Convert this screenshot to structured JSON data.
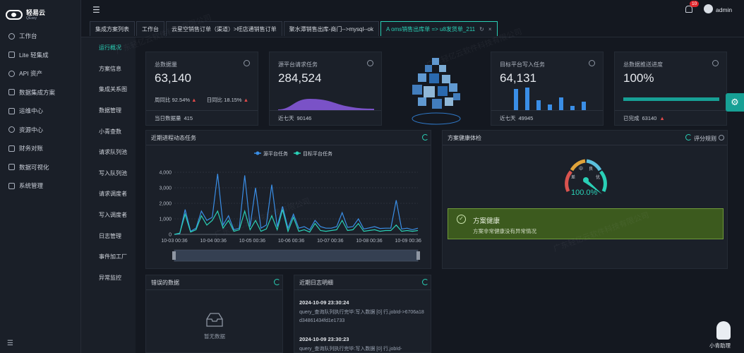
{
  "logo": {
    "name": "轻易云",
    "sub": "QEasy"
  },
  "sidebar": {
    "items": [
      {
        "label": "工作台",
        "icon": "workbench-icon"
      },
      {
        "label": "Lite 轻集成",
        "icon": "lite-icon"
      },
      {
        "label": "API 资产",
        "icon": "api-icon"
      },
      {
        "label": "数据集成方案",
        "icon": "integration-icon"
      },
      {
        "label": "运维中心",
        "icon": "ops-icon"
      },
      {
        "label": "资源中心",
        "icon": "resource-icon"
      },
      {
        "label": "财务对账",
        "icon": "finance-icon"
      },
      {
        "label": "数据可视化",
        "icon": "visualization-icon"
      },
      {
        "label": "系统管理",
        "icon": "system-icon"
      }
    ]
  },
  "header": {
    "notifications": "10",
    "user": "admin"
  },
  "tabs": [
    {
      "label": "集成方案列表"
    },
    {
      "label": "工作台"
    },
    {
      "label": "云星空销售订单（渠道）>旺店通销售订单"
    },
    {
      "label": "聚水潭销售出库-商门-->mysql--ok"
    },
    {
      "label": "A oms销售出库单 => u8发货单_211",
      "active": true
    }
  ],
  "subnav": [
    "运行概况",
    "方案信息",
    "集成关系图",
    "数据管理",
    "小青查数",
    "请求队列池",
    "写入队列池",
    "请求调度者",
    "写入调度者",
    "日志管理",
    "事件加工厂",
    "异常监控"
  ],
  "stats": {
    "total": {
      "title": "总数据量",
      "value": "63,140",
      "wow_label": "周同比",
      "wow": "92.54%",
      "dod_label": "日同比",
      "dod": "18.15%",
      "foot_label": "当日数据量",
      "foot_value": "415"
    },
    "source": {
      "title": "源平台请求任务",
      "value": "284,524",
      "foot_label": "近七天",
      "foot_value": "90146"
    },
    "target": {
      "title": "目标平台写入任务",
      "value": "64,131",
      "foot_label": "近七天",
      "foot_value": "49945"
    },
    "progress": {
      "title": "总数据推送进度",
      "value": "100%",
      "foot_label": "已完成",
      "foot_value": "63140",
      "fraction": 1.0
    }
  },
  "trend": {
    "title": "近期进程动态任务",
    "legend": [
      "源平台任务",
      "目标平台任务"
    ],
    "colors": {
      "source": "#3a8ee6",
      "target": "#2ad0b6"
    }
  },
  "chart_data": {
    "type": "line",
    "yticks": [
      "4,000",
      "3,000",
      "2,000",
      "1,000",
      "0"
    ],
    "ylim": [
      0,
      4000
    ],
    "x_labels": [
      "10-03 00:36",
      "10-04 00:36",
      "10-05 00:36",
      "10-06 00:36",
      "10-07 00:36",
      "10-08 00:36",
      "10-09 00:36"
    ],
    "series": [
      {
        "name": "源平台任务",
        "values": [
          0,
          50,
          1600,
          200,
          400,
          1500,
          900,
          1100,
          3900,
          600,
          1200,
          300,
          400,
          3800,
          500,
          3000,
          400,
          600,
          3200,
          500,
          1800,
          400,
          1300,
          400,
          500,
          300,
          900,
          500,
          400,
          400,
          500,
          1400,
          450,
          500,
          1000,
          350,
          420,
          500,
          380,
          400,
          400,
          2200,
          350,
          400,
          300,
          400
        ]
      },
      {
        "name": "目标平台任务",
        "values": [
          0,
          80,
          1300,
          150,
          300,
          1200,
          600,
          900,
          1500,
          400,
          900,
          200,
          300,
          1500,
          300,
          900,
          200,
          350,
          1200,
          300,
          1600,
          200,
          1100,
          200,
          300,
          150,
          700,
          250,
          200,
          250,
          300,
          900,
          250,
          300,
          700,
          200,
          250,
          300,
          200,
          250,
          250,
          600,
          200,
          250,
          200,
          250
        ]
      }
    ]
  },
  "health": {
    "title": "方案健康体检",
    "rules": "评分规则",
    "gauge_labels": [
      "中",
      "良",
      "差",
      "优"
    ],
    "score": "100.0%",
    "status_title": "方案健康",
    "status_desc": "方案非常健康没有异常情况"
  },
  "errors": {
    "title": "错误的数据",
    "empty": "暂无数据"
  },
  "logs": {
    "title": "近期日志明细",
    "entries": [
      {
        "time": "2024-10-09 23:30:24",
        "text": "query_查询队列执行完毕:写入数据 [0] 行,jobId->6706a18d34861434fd1e1733"
      },
      {
        "time": "2024-10-09 23:30:23",
        "text": "query_查询队列执行完毕:写入数据 [0] 行,jobId-"
      }
    ]
  },
  "watermark_text": "广东轻亿云软件科技有限公司",
  "assistant": {
    "label": "小青助理"
  }
}
